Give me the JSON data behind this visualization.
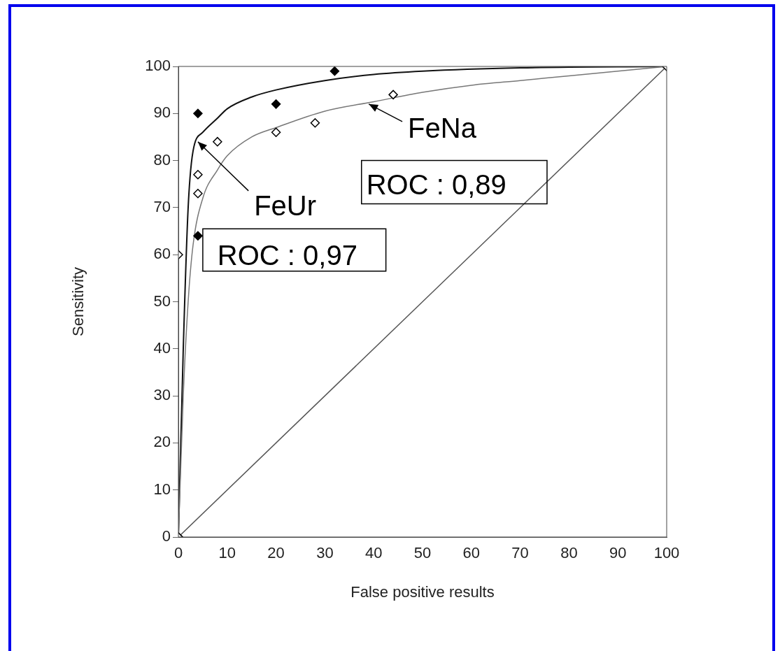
{
  "chart_data": {
    "type": "scatter",
    "xlabel": "False positive results",
    "ylabel": "Sensitivity",
    "xlim": [
      0,
      100
    ],
    "ylim": [
      0,
      100
    ],
    "xticks": [
      0,
      10,
      20,
      30,
      40,
      50,
      60,
      70,
      80,
      90,
      100
    ],
    "yticks": [
      0,
      10,
      20,
      30,
      40,
      50,
      60,
      70,
      80,
      90,
      100
    ],
    "grid": false,
    "legend": false,
    "series": [
      {
        "type": "line",
        "color": "#555555",
        "marker": "none",
        "x": [
          0,
          100
        ],
        "values": [
          0,
          100
        ]
      },
      {
        "type": "line",
        "color": "#777777",
        "marker": "none",
        "x": [
          0,
          1,
          2,
          3,
          5,
          8,
          10,
          15,
          20,
          30,
          40,
          50,
          60,
          70,
          80,
          90,
          100
        ],
        "values": [
          0,
          30,
          50,
          62,
          72,
          78,
          81,
          85,
          87,
          90.5,
          92.5,
          94.5,
          96,
          97,
          98,
          99,
          100
        ]
      },
      {
        "type": "line",
        "color": "#111111",
        "marker": "none",
        "x": [
          0,
          1,
          2,
          3,
          5,
          8,
          10,
          15,
          20,
          30,
          40,
          50,
          70,
          100
        ],
        "values": [
          0,
          40,
          70,
          82,
          86,
          89,
          91,
          93.5,
          95,
          97,
          98.3,
          99,
          99.7,
          100
        ]
      },
      {
        "type": "scatter",
        "color": "#ffffff",
        "marker": "diamond",
        "x": [
          0,
          0,
          4,
          4,
          8,
          20,
          28,
          44,
          100
        ],
        "values": [
          0,
          60,
          73,
          77,
          84,
          86,
          88,
          94,
          100
        ]
      },
      {
        "type": "scatter",
        "color": "#000000",
        "marker": "diamond",
        "x": [
          0,
          4,
          4,
          20,
          32
        ],
        "values": [
          0,
          64,
          90,
          92,
          99
        ]
      }
    ],
    "annotations": [
      {
        "text": "FeNa",
        "x": 39,
        "y": 92
      },
      "ROC : 0,89",
      {
        "text": "FeUr",
        "x": 4,
        "y": 84
      },
      "ROC : 0,97"
    ]
  }
}
